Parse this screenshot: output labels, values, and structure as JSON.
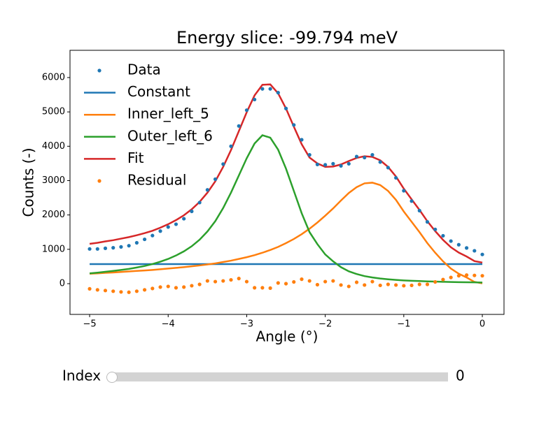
{
  "chart_data": {
    "type": "line",
    "title": "Energy slice: -99.794 meV",
    "xlabel": "Angle (°)",
    "ylabel": "Counts (-)",
    "x": [
      -5,
      -4.9,
      -4.8,
      -4.7,
      -4.6,
      -4.5,
      -4.4,
      -4.3,
      -4.2,
      -4.1,
      -4,
      -3.9,
      -3.8,
      -3.7,
      -3.6,
      -3.5,
      -3.4,
      -3.3,
      -3.2,
      -3.1,
      -3,
      -2.9,
      -2.8,
      -2.7,
      -2.6,
      -2.5,
      -2.4,
      -2.3,
      -2.2,
      -2.1,
      -2,
      -1.9,
      -1.8,
      -1.7,
      -1.6,
      -1.5,
      -1.4,
      -1.3,
      -1.2,
      -1.1,
      -1,
      -0.9,
      -0.8,
      -0.7,
      -0.6,
      -0.5,
      -0.4,
      -0.3,
      -0.2,
      -0.1,
      0
    ],
    "series": [
      {
        "name": "Data",
        "style": "scatter",
        "color": "#1f77b4",
        "values": [
          1010,
          1010,
          1030,
          1045,
          1070,
          1105,
          1190,
          1290,
          1400,
          1530,
          1650,
          1730,
          1890,
          2105,
          2360,
          2730,
          3040,
          3480,
          4000,
          4590,
          5050,
          5360,
          5670,
          5670,
          5560,
          5100,
          4620,
          4190,
          3750,
          3470,
          3460,
          3490,
          3430,
          3490,
          3700,
          3670,
          3750,
          3540,
          3378,
          3080,
          2705,
          2404,
          2125,
          1797,
          1580,
          1394,
          1239,
          1134,
          1040,
          957,
          850
        ]
      },
      {
        "name": "Constant",
        "style": "line",
        "color": "#1f77b4",
        "values": [
          570,
          570,
          570,
          570,
          570,
          570,
          570,
          570,
          570,
          570,
          570,
          570,
          570,
          570,
          570,
          570,
          570,
          570,
          570,
          570,
          570,
          570,
          570,
          570,
          570,
          570,
          570,
          570,
          570,
          570,
          570,
          570,
          570,
          570,
          570,
          570,
          570,
          570,
          570,
          570,
          570,
          570,
          570,
          570,
          570,
          570,
          570,
          570,
          570,
          570,
          570
        ]
      },
      {
        "name": "Inner_left_5",
        "style": "line",
        "color": "#ff7f0e",
        "values": [
          290,
          300,
          315,
          325,
          340,
          355,
          370,
          385,
          400,
          420,
          440,
          460,
          480,
          505,
          530,
          560,
          590,
          630,
          670,
          720,
          770,
          830,
          900,
          980,
          1070,
          1180,
          1300,
          1440,
          1600,
          1780,
          1980,
          2190,
          2420,
          2640,
          2810,
          2920,
          2940,
          2870,
          2700,
          2440,
          2100,
          1800,
          1500,
          1180,
          900,
          650,
          440,
          290,
          180,
          50,
          10
        ]
      },
      {
        "name": "Outer_left_6",
        "style": "line",
        "color": "#2ca02c",
        "values": [
          300,
          320,
          345,
          370,
          400,
          430,
          470,
          515,
          570,
          640,
          720,
          820,
          940,
          1090,
          1280,
          1520,
          1820,
          2200,
          2650,
          3150,
          3650,
          4080,
          4320,
          4250,
          3900,
          3350,
          2700,
          2050,
          1500,
          1150,
          850,
          650,
          480,
          360,
          280,
          220,
          180,
          150,
          128,
          110,
          95,
          84,
          75,
          67,
          60,
          54,
          49,
          44,
          40,
          37,
          34
        ]
      },
      {
        "name": "Fit",
        "style": "line",
        "color": "#d62728",
        "values": [
          1160,
          1190,
          1230,
          1265,
          1310,
          1355,
          1410,
          1470,
          1540,
          1630,
          1730,
          1850,
          1990,
          2165,
          2380,
          2650,
          2980,
          3400,
          3890,
          4440,
          4990,
          5480,
          5790,
          5800,
          5540,
          5100,
          4570,
          4060,
          3670,
          3500,
          3400,
          3410,
          3470,
          3570,
          3660,
          3710,
          3690,
          3590,
          3398,
          3120,
          2765,
          2454,
          2145,
          1817,
          1530,
          1274,
          1059,
          904,
          790,
          657,
          614
        ]
      },
      {
        "name": "Residual",
        "style": "scatter",
        "color": "#ff7f0e",
        "values": [
          -150,
          -180,
          -200,
          -220,
          -240,
          -250,
          -220,
          -180,
          -140,
          -100,
          -80,
          -120,
          -100,
          -60,
          -20,
          80,
          60,
          80,
          110,
          150,
          60,
          -120,
          -120,
          -130,
          20,
          0,
          50,
          130,
          80,
          -30,
          60,
          80,
          -40,
          -80,
          40,
          -40,
          60,
          -50,
          -20,
          -40,
          -60,
          -50,
          -20,
          -20,
          50,
          120,
          180,
          230,
          250,
          240,
          230
        ]
      }
    ],
    "xlim": [
      -5.25,
      0.276
    ],
    "ylim": [
      -895,
      6793
    ],
    "xticks": [
      {
        "value": -5,
        "label": "−5"
      },
      {
        "value": -4,
        "label": "−4"
      },
      {
        "value": -3,
        "label": "−3"
      },
      {
        "value": -2,
        "label": "−2"
      },
      {
        "value": -1,
        "label": "−1"
      },
      0
    ],
    "yticks": [
      0,
      1000,
      2000,
      3000,
      4000,
      5000,
      6000
    ],
    "legend": "upper left"
  },
  "slider": {
    "label": "Index",
    "value": 0
  }
}
